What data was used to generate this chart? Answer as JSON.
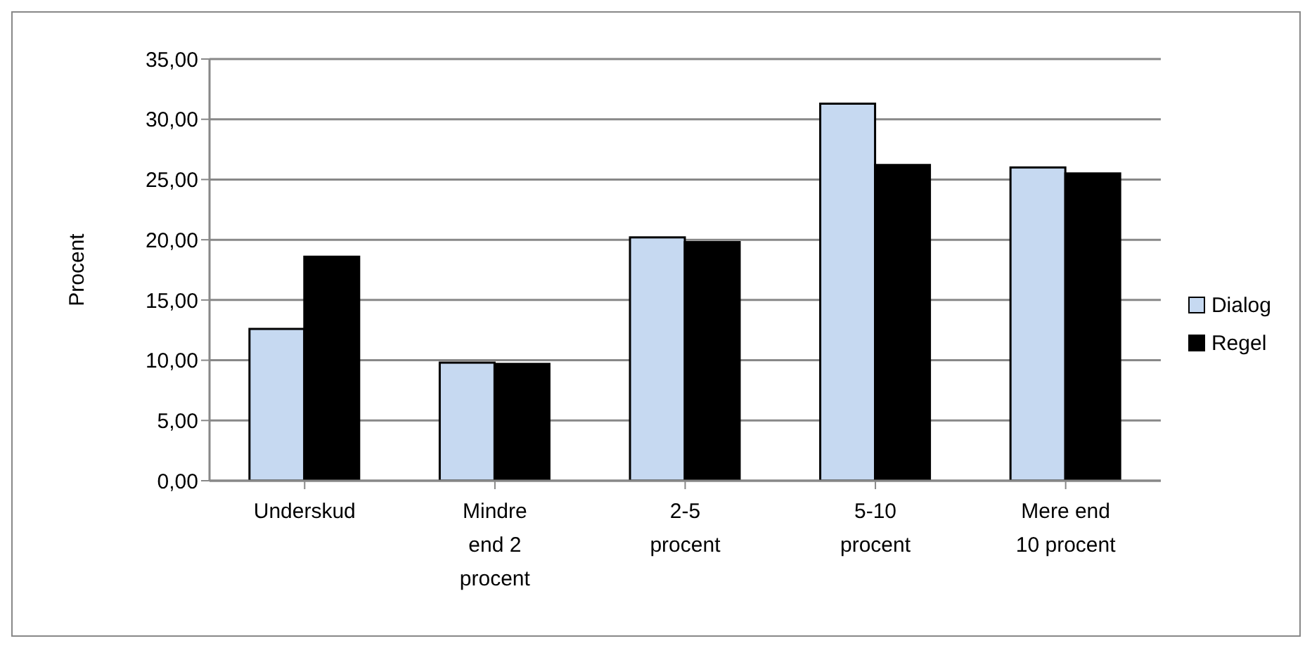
{
  "chart_data": {
    "type": "bar",
    "ylabel": "Procent",
    "categories": [
      "Underskud",
      "Mindre end 2 procent",
      "2-5 procent",
      "5-10 procent",
      "Mere end 10 procent"
    ],
    "series": [
      {
        "name": "Dialog",
        "color": "#c6d9f1",
        "values": [
          12.6,
          9.8,
          20.2,
          31.3,
          26.0
        ]
      },
      {
        "name": "Regel",
        "color": "#000000",
        "values": [
          18.6,
          9.7,
          19.8,
          26.2,
          25.5
        ]
      }
    ],
    "ylim": [
      0,
      35
    ],
    "yticks": [
      {
        "value": 0,
        "label": "0,00"
      },
      {
        "value": 5,
        "label": "5,00"
      },
      {
        "value": 10,
        "label": "10,00"
      },
      {
        "value": 15,
        "label": "15,00"
      },
      {
        "value": 20,
        "label": "20,00"
      },
      {
        "value": 25,
        "label": "25,00"
      },
      {
        "value": 30,
        "label": "30,00"
      },
      {
        "value": 35,
        "label": "35,00"
      }
    ],
    "grid": "y",
    "legend": "right"
  }
}
